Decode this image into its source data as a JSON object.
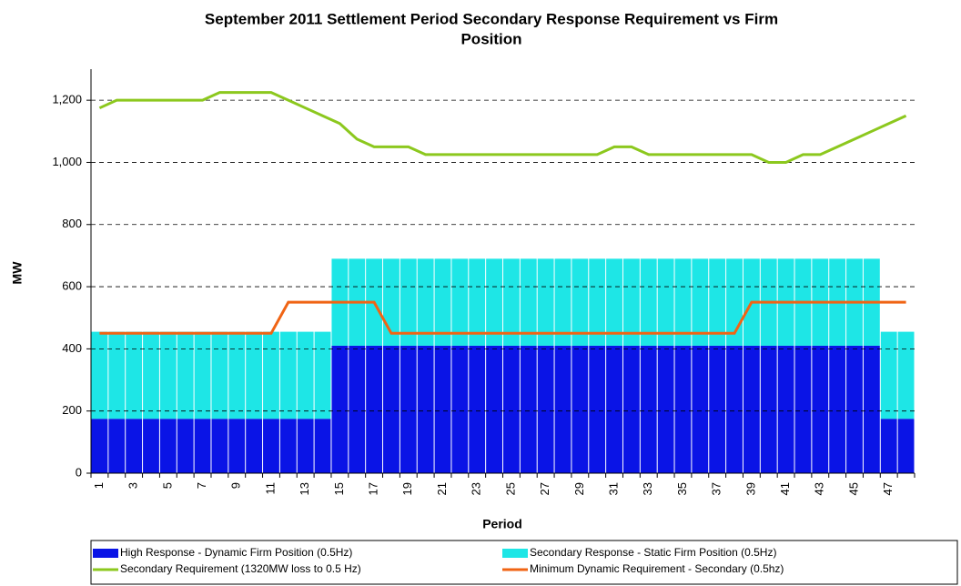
{
  "chart_data": {
    "type": "bar",
    "stacked": true,
    "title": [
      "September 2011 Settlement Period Secondary Response Requirement vs Firm",
      "Position"
    ],
    "x_label": "Period",
    "y_label": "MW",
    "categories": [
      "1",
      null,
      "3",
      null,
      "5",
      null,
      "7",
      null,
      "9",
      null,
      "11",
      null,
      "13",
      null,
      "15",
      null,
      "17",
      null,
      "19",
      null,
      "21",
      null,
      "23",
      null,
      "25",
      null,
      "27",
      null,
      "29",
      null,
      "31",
      null,
      "33",
      null,
      "35",
      null,
      "37",
      null,
      "39",
      null,
      "41",
      null,
      "43",
      null,
      "45",
      null,
      "47",
      null
    ],
    "ylim": [
      0,
      1300
    ],
    "yticks": [
      0,
      200,
      400,
      600,
      800,
      {
        "value": 1000,
        "label": "1,000"
      },
      {
        "value": 1200,
        "label": "1,200"
      }
    ],
    "grid": true,
    "series": [
      {
        "name": "High Response - Dynamic Firm Position (0.5Hz)",
        "type": "bar",
        "color": "#0a14e6",
        "values": [
          175,
          175,
          175,
          175,
          175,
          175,
          175,
          175,
          175,
          175,
          175,
          175,
          175,
          175,
          410,
          410,
          410,
          410,
          410,
          410,
          410,
          410,
          410,
          410,
          410,
          410,
          410,
          410,
          410,
          410,
          410,
          410,
          410,
          410,
          410,
          410,
          410,
          410,
          410,
          410,
          410,
          410,
          410,
          410,
          410,
          410,
          175,
          175
        ]
      },
      {
        "name": "Secondary Response - Static Firm Position (0.5Hz)",
        "type": "bar",
        "color": "#1ee6e6",
        "values": [
          280,
          280,
          280,
          280,
          280,
          280,
          280,
          280,
          280,
          280,
          280,
          280,
          280,
          280,
          280,
          280,
          280,
          280,
          280,
          280,
          280,
          280,
          280,
          280,
          280,
          280,
          280,
          280,
          280,
          280,
          280,
          280,
          280,
          280,
          280,
          280,
          280,
          280,
          280,
          280,
          280,
          280,
          280,
          280,
          280,
          280,
          280,
          280
        ]
      },
      {
        "name": "Secondary Requirement (1320MW loss to 0.5 Hz)",
        "type": "line",
        "color": "#8cc81e",
        "values": [
          1175,
          1200,
          1200,
          1200,
          1200,
          1200,
          1200,
          1225,
          1225,
          1225,
          1225,
          1200,
          1175,
          1150,
          1125,
          1075,
          1050,
          1050,
          1050,
          1025,
          1025,
          1025,
          1025,
          1025,
          1025,
          1025,
          1025,
          1025,
          1025,
          1025,
          1050,
          1050,
          1025,
          1025,
          1025,
          1025,
          1025,
          1025,
          1025,
          1000,
          1000,
          1025,
          1025,
          1050,
          1075,
          1100,
          1125,
          1150
        ]
      },
      {
        "name": "Minimum Dynamic Requirement - Secondary (0.5hz)",
        "type": "line",
        "color": "#f06414",
        "values": [
          450,
          450,
          450,
          450,
          450,
          450,
          450,
          450,
          450,
          450,
          450,
          550,
          550,
          550,
          550,
          550,
          550,
          450,
          450,
          450,
          450,
          450,
          450,
          450,
          450,
          450,
          450,
          450,
          450,
          450,
          450,
          450,
          450,
          450,
          450,
          450,
          450,
          450,
          550,
          550,
          550,
          550,
          550,
          550,
          550,
          550,
          550,
          550
        ]
      }
    ]
  }
}
